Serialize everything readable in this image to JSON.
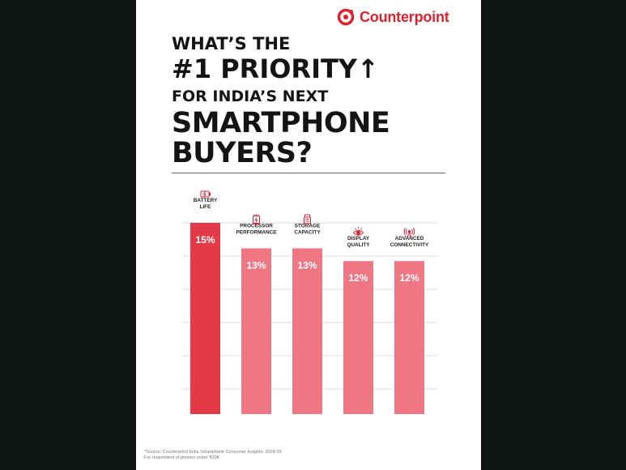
{
  "brand": {
    "name": "Counterpoint",
    "color": "#e0202e"
  },
  "title_lines": [
    "WHAT’S THE",
    "#1 PRIORITY↑",
    "FOR INDIA’S NEXT",
    "SMARTPHONE",
    "BUYERS?"
  ],
  "chart_data": {
    "type": "bar",
    "categories": [
      [
        "BATTERY",
        "LIFE"
      ],
      [
        "PROCESSOR",
        "PERFORMANCE"
      ],
      [
        "STORAGE",
        "CAPACITY"
      ],
      [
        "DISPLAY",
        "QUALITY"
      ],
      [
        "ADVANCED",
        "CONNECTIVITY"
      ]
    ],
    "values": [
      15,
      13,
      13,
      12,
      12
    ],
    "value_labels": [
      "15%",
      "13%",
      "13%",
      "12%",
      "12%"
    ],
    "icons": [
      "battery-icon",
      "processor-icon",
      "storage-icon",
      "eye-icon",
      "signal-icon"
    ],
    "colors": [
      "#e33a48",
      "#ef7683",
      "#ef7683",
      "#ef7683",
      "#ef7683"
    ],
    "ylim": [
      0,
      15
    ],
    "grid": true,
    "xlabel": "",
    "ylabel": ""
  },
  "footnote": {
    "source": "*Source: Counterpoint India Smartphone Consumer Insights: 2024-25",
    "note": "For respondent of phones under ₹20K"
  }
}
